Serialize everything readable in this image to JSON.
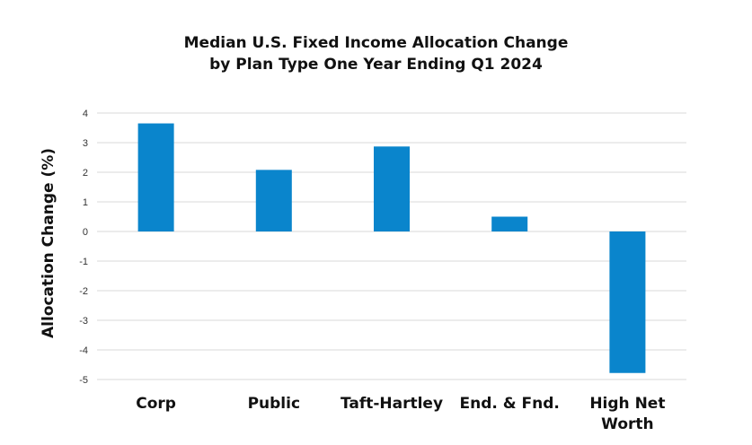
{
  "chart_data": {
    "type": "bar",
    "title_lines": [
      "Median U.S. Fixed Income Allocation Change",
      "by Plan Type One Year Ending Q1 2024"
    ],
    "xlabel": "",
    "ylabel": "Allocation Change (%)",
    "categories": [
      "Corp",
      "Public",
      "Taft-Hartley",
      "End. & Fnd.",
      [
        "High Net",
        "Worth"
      ]
    ],
    "values": [
      3.65,
      2.08,
      2.87,
      0.5,
      -4.78
    ],
    "ylim": [
      -5,
      4
    ],
    "yticks": [
      "4",
      "3",
      "2",
      "1",
      "0",
      "-1",
      "-2",
      "-3",
      "-4",
      "-5"
    ],
    "bar_color": "#0a85cc",
    "grid": true,
    "legend": "none"
  }
}
